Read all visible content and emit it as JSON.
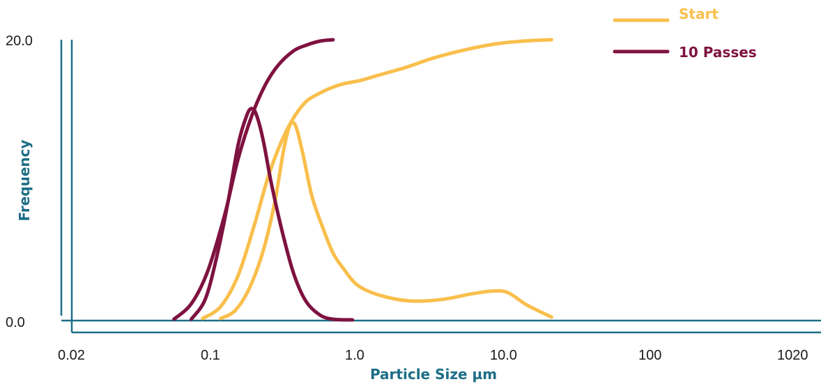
{
  "chart_data": {
    "type": "line",
    "title": "",
    "xlabel": "Particle Size µm",
    "ylabel": "Frequency",
    "x_scale": "log",
    "xlim": [
      0.016,
      1250
    ],
    "ylim": [
      0,
      20
    ],
    "x_ticks": [
      {
        "value": 0.02,
        "label": "0.02"
      },
      {
        "value": 0.1,
        "label": "0.1"
      },
      {
        "value": 1,
        "label": "1.0"
      },
      {
        "value": 10,
        "label": "10.0"
      },
      {
        "value": 100,
        "label": "100"
      },
      {
        "value": 1020,
        "label": "1020"
      }
    ],
    "y_ticks": [
      {
        "value": 20,
        "label": "20.0"
      },
      {
        "value": 0,
        "label": "0.0"
      }
    ],
    "legend_position": "top-right",
    "series": [
      {
        "name": "Start",
        "color": "#F9BF4C",
        "curves": [
          {
            "kind": "distribution",
            "x": [
              0.17,
              0.21,
              0.26,
              0.32,
              0.38,
              0.43,
              0.47,
              0.5,
              0.53,
              0.58,
              0.66,
              0.78,
              0.9,
              1.05,
              1.3,
              1.8,
              2.8,
              4.5,
              7.0,
              9.5,
              12.0,
              16.0,
              23.0
            ],
            "y": [
              0.15,
              0.7,
              2.3,
              5.0,
              8.5,
              12.0,
              13.8,
              14.1,
              13.5,
              11.7,
              8.8,
              6.5,
              4.8,
              3.7,
              2.5,
              1.8,
              1.4,
              1.5,
              1.9,
              2.1,
              2.0,
              1.1,
              0.25
            ]
          },
          {
            "kind": "cumulative",
            "x": [
              0.13,
              0.17,
              0.22,
              0.28,
              0.35,
              0.45,
              0.58,
              0.74,
              1.0,
              1.35,
              1.8,
              2.6,
              4.0,
              6.5,
              10.0,
              15.0,
              23.0
            ],
            "y": [
              0.15,
              1.0,
              3.2,
              6.8,
              10.5,
              13.5,
              15.4,
              16.2,
              16.8,
              17.1,
              17.5,
              18.0,
              18.7,
              19.3,
              19.7,
              19.9,
              20.0
            ]
          }
        ]
      },
      {
        "name": "10 Passes",
        "color": "#7E1240",
        "curves": [
          {
            "kind": "distribution",
            "x": [
              0.11,
              0.135,
              0.16,
              0.19,
              0.22,
              0.25,
              0.27,
              0.29,
              0.32,
              0.36,
              0.42,
              0.5,
              0.6,
              0.74,
              0.9,
              1.2
            ],
            "y": [
              0.1,
              1.5,
              4.5,
              8.5,
              12.5,
              14.6,
              15.1,
              14.6,
              12.8,
              9.8,
              6.5,
              3.4,
              1.4,
              0.4,
              0.1,
              0.05
            ]
          },
          {
            "kind": "cumulative",
            "x": [
              0.085,
              0.11,
              0.14,
              0.18,
              0.22,
              0.27,
              0.33,
              0.4,
              0.5,
              0.6,
              0.74,
              0.9
            ],
            "y": [
              0.1,
              1.2,
              3.5,
              7.5,
              11.5,
              14.6,
              16.8,
              18.2,
              19.2,
              19.6,
              19.9,
              20.0
            ]
          }
        ]
      }
    ]
  },
  "colors": {
    "axis": "#1C6D86",
    "axis_title": "#1C6D86",
    "legend_text_start": "#F9BF4C",
    "legend_text_passes": "#7E1240"
  }
}
